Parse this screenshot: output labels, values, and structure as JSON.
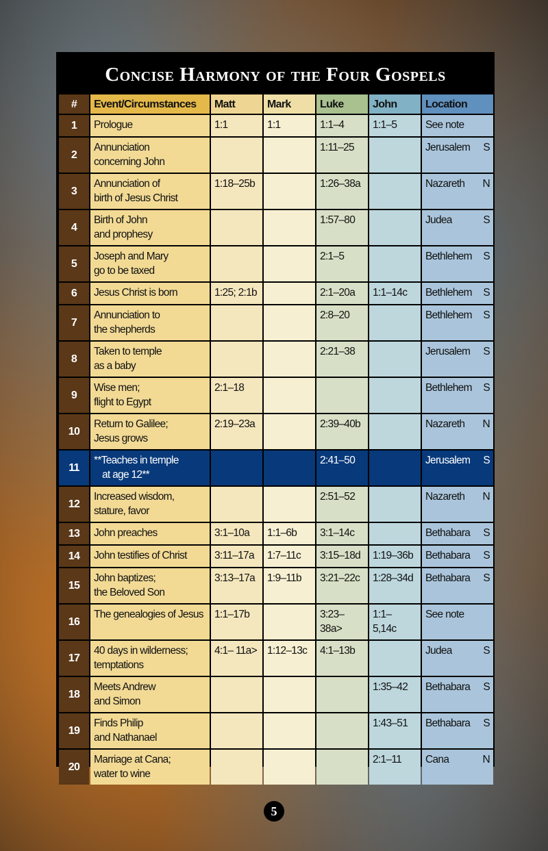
{
  "title": "Concise Harmony of the Four Gospels",
  "headers": [
    "#",
    "Event/Circumstances",
    "Matt",
    "Mark",
    "Luke",
    "John",
    "Location"
  ],
  "rows": [
    {
      "num": "1",
      "event": [
        "Prologue"
      ],
      "matt": "1:1",
      "mark": "1:1",
      "luke": "1:1–4",
      "john": "1:1–5",
      "location": "See note",
      "region": ""
    },
    {
      "num": "2",
      "event": [
        "Annunciation",
        "concerning John"
      ],
      "matt": "",
      "mark": "",
      "luke": "1:11–25",
      "john": "",
      "location": "Jerusalem",
      "region": "S"
    },
    {
      "num": "3",
      "event": [
        "Annunciation of",
        "birth of Jesus Christ"
      ],
      "matt": "1:18–25b",
      "mark": "",
      "luke": "1:26–38a",
      "john": "",
      "location": "Nazareth",
      "region": "N"
    },
    {
      "num": "4",
      "event": [
        "Birth of John",
        "and prophesy"
      ],
      "matt": "",
      "mark": "",
      "luke": "1:57–80",
      "john": "",
      "location": "Judea",
      "region": "S"
    },
    {
      "num": "5",
      "event": [
        "Joseph and Mary",
        "go to be taxed"
      ],
      "matt": "",
      "mark": "",
      "luke": "2:1–5",
      "john": "",
      "location": "Bethlehem",
      "region": "S"
    },
    {
      "num": "6",
      "event": [
        "Jesus Christ is born"
      ],
      "matt": "1:25; 2:1b",
      "mark": "",
      "luke": "2:1–20a",
      "john": "1:1–14c",
      "location": "Bethlehem",
      "region": "S"
    },
    {
      "num": "7",
      "event": [
        "Annunciation to",
        "the shepherds"
      ],
      "matt": "",
      "mark": "",
      "luke": "2:8–20",
      "john": "",
      "location": "Bethlehem",
      "region": "S"
    },
    {
      "num": "8",
      "event": [
        "Taken to temple",
        "as a baby"
      ],
      "matt": "",
      "mark": "",
      "luke": "2:21–38",
      "john": "",
      "location": "Jerusalem",
      "region": "S"
    },
    {
      "num": "9",
      "event": [
        "Wise men;",
        "flight to Egypt"
      ],
      "matt": "2:1–18",
      "mark": "",
      "luke": "",
      "john": "",
      "location": "Bethlehem",
      "region": "S"
    },
    {
      "num": "10",
      "event": [
        "Return to Galilee;",
        "Jesus grows"
      ],
      "matt": "2:19–23a",
      "mark": "",
      "luke": "2:39–40b",
      "john": "",
      "location": "Nazareth",
      "region": "N"
    },
    {
      "num": "11",
      "event": [
        "**Teaches in temple",
        "at age 12**"
      ],
      "matt": "",
      "mark": "",
      "luke": "2:41–50",
      "john": "",
      "location": "Jerusalem",
      "region": "S",
      "highlight": true
    },
    {
      "num": "12",
      "event": [
        "Increased wisdom,",
        "stature, favor"
      ],
      "matt": "",
      "mark": "",
      "luke": "2:51–52",
      "john": "",
      "location": "Nazareth",
      "region": "N"
    },
    {
      "num": "13",
      "event": [
        "John preaches"
      ],
      "matt": "3:1–10a",
      "mark": "1:1–6b",
      "luke": "3:1–14c",
      "john": "",
      "location": "Bethabara",
      "region": "S"
    },
    {
      "num": "14",
      "event": [
        "John testifies of Christ"
      ],
      "matt": "3:11–17a",
      "mark": "1:7–11c",
      "luke": "3:15–18d",
      "john": "1:19–36b",
      "location": "Bethabara",
      "region": "S"
    },
    {
      "num": "15",
      "event": [
        "John baptizes;",
        "the Beloved Son"
      ],
      "matt": "3:13–17a",
      "mark": "1:9–11b",
      "luke": "3:21–22c",
      "john": "1:28–34d",
      "location": "Bethabara",
      "region": "S"
    },
    {
      "num": "16",
      "event": [
        "The genealogies of Jesus"
      ],
      "matt": "1:1–17b",
      "mark": "",
      "luke": "3:23– 38a>",
      "john": "1:1– 5,14c",
      "location": "See note",
      "region": "",
      "tall": true
    },
    {
      "num": "17",
      "event": [
        "40 days in wilderness;",
        "temptations"
      ],
      "matt": "4:1– 11a>",
      "mark": "1:12–13c",
      "luke": "4:1–13b",
      "john": "",
      "location": "Judea",
      "region": "S"
    },
    {
      "num": "18",
      "event": [
        "Meets Andrew",
        "and Simon"
      ],
      "matt": "",
      "mark": "",
      "luke": "",
      "john": "1:35–42",
      "location": "Bethabara",
      "region": "S"
    },
    {
      "num": "19",
      "event": [
        "Finds Philip",
        "and Nathanael"
      ],
      "matt": "",
      "mark": "",
      "luke": "",
      "john": "1:43–51",
      "location": "Bethabara",
      "region": "S"
    },
    {
      "num": "20",
      "event": [
        "Marriage at Cana;",
        "water to wine"
      ],
      "matt": "",
      "mark": "",
      "luke": "",
      "john": "2:1–11",
      "location": "Cana",
      "region": "N"
    }
  ],
  "page_number": "5"
}
